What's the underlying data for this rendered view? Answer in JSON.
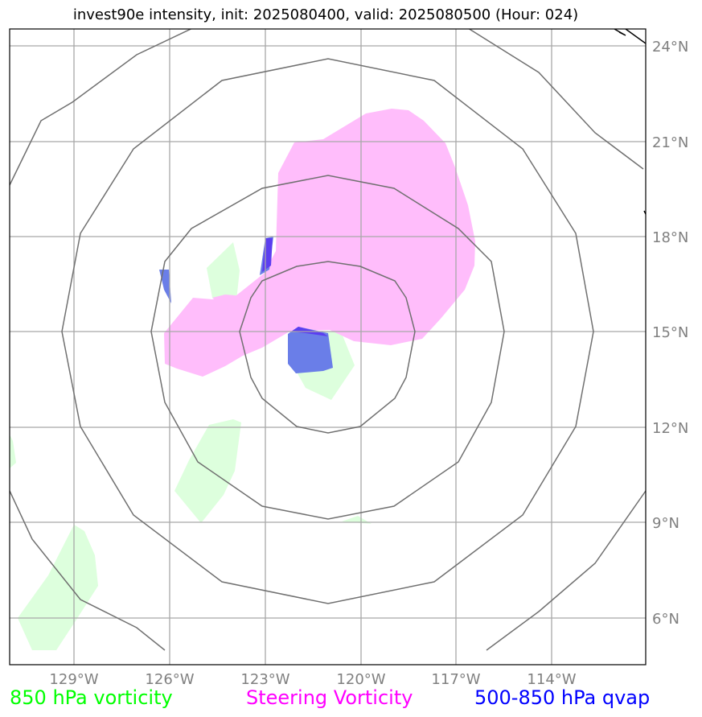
{
  "title": "invest90e intensity, init: 2025080400, valid: 2025080500 (Hour: 024)",
  "longitude_labels": [
    "129°W",
    "126°W",
    "123°W",
    "120°W",
    "117°W",
    "114°W"
  ],
  "latitude_labels": [
    "24°N",
    "21°N",
    "18°N",
    "15°N",
    "12°N",
    "9°N",
    "6°N"
  ],
  "legend": [
    {
      "label": "850 hPa vorticity",
      "color": "#00ff00"
    },
    {
      "label": "Steering Vorticity",
      "color": "#ff00ff"
    },
    {
      "label": "500-850 hPa qvap",
      "color": "#0000ff"
    }
  ],
  "colors": {
    "vorticity_850": "#ddffdd",
    "steering_vorticity": "#ffbdfb",
    "qvap": "#6a7ee8",
    "range_rings": "#707070",
    "gridlines": "#a8a8a8"
  }
}
